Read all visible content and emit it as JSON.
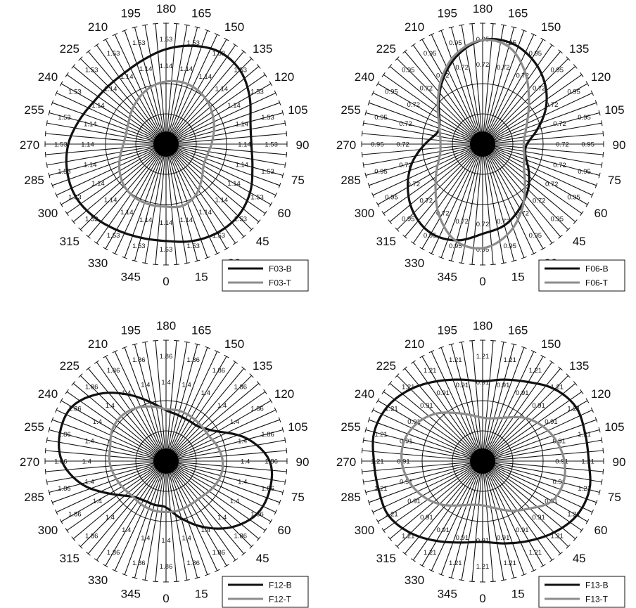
{
  "chart_data": [
    {
      "type": "polar-line",
      "angle_labels": [
        "0",
        "15",
        "30",
        "45",
        "60",
        "75",
        "90",
        "105",
        "120",
        "135",
        "150",
        "165",
        "180",
        "195",
        "210",
        "225",
        "240",
        "255",
        "270",
        "285",
        "300",
        "315",
        "330",
        "345"
      ],
      "ring_labels": [
        "1.14",
        "1.53"
      ],
      "series": [
        {
          "name": "F03-B",
          "color": "#111111",
          "values": [
            1.41,
            1.46,
            1.49,
            1.48,
            1.41,
            1.3,
            1.24,
            1.27,
            1.4,
            1.52,
            1.55,
            1.48,
            1.38,
            1.27,
            1.2,
            1.19,
            1.22,
            1.31,
            1.42,
            1.49,
            1.52,
            1.49,
            1.44,
            1.41
          ]
        },
        {
          "name": "F03-T",
          "color": "#8c8c8c",
          "values": [
            0.91,
            0.93,
            0.86,
            0.73,
            0.63,
            0.62,
            0.66,
            0.72,
            0.79,
            0.86,
            0.91,
            0.93,
            0.91,
            0.86,
            0.78,
            0.7,
            0.63,
            0.6,
            0.62,
            0.69,
            0.78,
            0.86,
            0.9,
            0.91
          ]
        }
      ]
    },
    {
      "type": "polar-line",
      "angle_labels": [
        "0",
        "15",
        "30",
        "45",
        "60",
        "75",
        "90",
        "105",
        "120",
        "135",
        "150",
        "165",
        "180",
        "195",
        "210",
        "225",
        "240",
        "255",
        "270",
        "285",
        "300",
        "315",
        "330",
        "345"
      ],
      "ring_labels": [
        "0.72",
        "0.95"
      ],
      "series": [
        {
          "name": "F06-B",
          "color": "#111111",
          "values": [
            0.81,
            0.76,
            0.67,
            0.58,
            0.48,
            0.4,
            0.4,
            0.51,
            0.66,
            0.79,
            0.89,
            0.95,
            0.94,
            0.84,
            0.7,
            0.56,
            0.45,
            0.42,
            0.52,
            0.66,
            0.78,
            0.88,
            0.93,
            0.9
          ]
        },
        {
          "name": "F06-T",
          "color": "#8c8c8c",
          "values": [
            0.94,
            0.85,
            0.7,
            0.54,
            0.43,
            0.39,
            0.37,
            0.4,
            0.47,
            0.59,
            0.76,
            0.91,
            0.94,
            0.86,
            0.72,
            0.57,
            0.46,
            0.4,
            0.38,
            0.4,
            0.48,
            0.6,
            0.77,
            0.91
          ]
        }
      ]
    },
    {
      "type": "polar-line",
      "angle_labels": [
        "0",
        "15",
        "30",
        "45",
        "60",
        "75",
        "90",
        "105",
        "120",
        "135",
        "150",
        "165",
        "180",
        "195",
        "210",
        "225",
        "240",
        "255",
        "270",
        "285",
        "300",
        "315",
        "330",
        "345"
      ],
      "ring_labels": [
        "1.4",
        "1.86"
      ],
      "series": [
        {
          "name": "F12-B",
          "color": "#111111",
          "values": [
            0.82,
            1.05,
            1.35,
            1.65,
            1.86,
            1.9,
            1.83,
            1.5,
            1.05,
            0.85,
            0.82,
            0.84,
            0.9,
            1.08,
            1.36,
            1.68,
            1.92,
            1.94,
            1.84,
            1.55,
            1.15,
            0.88,
            0.8,
            0.8
          ]
        },
        {
          "name": "F12-T",
          "color": "#8c8c8c",
          "values": [
            0.9,
            0.9,
            0.88,
            0.89,
            0.95,
            1.0,
            1.0,
            0.95,
            0.88,
            0.88,
            0.9,
            0.92,
            0.92,
            1.0,
            1.08,
            1.12,
            1.1,
            1.02,
            1.0,
            0.95,
            0.9,
            0.86,
            0.88,
            0.9
          ]
        }
      ]
    },
    {
      "type": "polar-line",
      "angle_labels": [
        "0",
        "15",
        "30",
        "45",
        "60",
        "75",
        "90",
        "105",
        "120",
        "135",
        "150",
        "165",
        "180",
        "195",
        "210",
        "225",
        "240",
        "255",
        "270",
        "285",
        "300",
        "315",
        "330",
        "345"
      ],
      "ring_labels": [
        "0.91",
        "1.21"
      ],
      "series": [
        {
          "name": "F13-B",
          "color": "#111111",
          "values": [
            0.93,
            0.98,
            1.06,
            1.16,
            1.25,
            1.27,
            1.22,
            1.22,
            1.24,
            1.17,
            1.05,
            0.97,
            0.92,
            0.97,
            1.06,
            1.17,
            1.26,
            1.29,
            1.25,
            1.24,
            1.25,
            1.17,
            1.06,
            0.97
          ]
        },
        {
          "name": "F13-T",
          "color": "#8c8c8c",
          "values": [
            0.51,
            0.56,
            0.66,
            0.77,
            0.92,
            0.96,
            0.94,
            0.88,
            0.8,
            0.7,
            0.58,
            0.51,
            0.5,
            0.55,
            0.64,
            0.77,
            0.87,
            0.93,
            0.93,
            0.88,
            0.8,
            0.7,
            0.59,
            0.52
          ]
        }
      ]
    }
  ]
}
